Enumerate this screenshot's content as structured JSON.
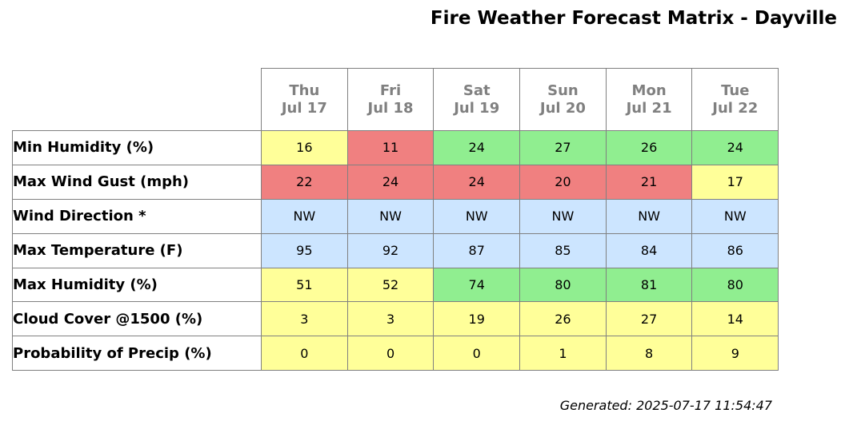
{
  "title": "Fire Weather Forecast Matrix - Dayville",
  "footer": "Generated: 2025-07-17 11:54:47",
  "colors": {
    "red": "#f08080",
    "yellow": "#ffff99",
    "green": "#90ee90",
    "blue": "#cce5ff"
  },
  "chart_data": {
    "type": "table",
    "title": "Fire Weather Forecast Matrix - Dayville",
    "columns": [
      {
        "weekday": "Thu",
        "date": "Jul 17"
      },
      {
        "weekday": "Fri",
        "date": "Jul 18"
      },
      {
        "weekday": "Sat",
        "date": "Jul 19"
      },
      {
        "weekday": "Sun",
        "date": "Jul 20"
      },
      {
        "weekday": "Mon",
        "date": "Jul 21"
      },
      {
        "weekday": "Tue",
        "date": "Jul 22"
      }
    ],
    "rows": [
      {
        "label": "Min Humidity (%)",
        "values": [
          "16",
          "11",
          "24",
          "27",
          "26",
          "24"
        ],
        "colors": [
          "yellow",
          "red",
          "green",
          "green",
          "green",
          "green"
        ]
      },
      {
        "label": "Max Wind Gust (mph)",
        "values": [
          "22",
          "24",
          "24",
          "20",
          "21",
          "17"
        ],
        "colors": [
          "red",
          "red",
          "red",
          "red",
          "red",
          "yellow"
        ]
      },
      {
        "label": "Wind Direction *",
        "values": [
          "NW",
          "NW",
          "NW",
          "NW",
          "NW",
          "NW"
        ],
        "colors": [
          "blue",
          "blue",
          "blue",
          "blue",
          "blue",
          "blue"
        ]
      },
      {
        "label": "Max Temperature (F)",
        "values": [
          "95",
          "92",
          "87",
          "85",
          "84",
          "86"
        ],
        "colors": [
          "blue",
          "blue",
          "blue",
          "blue",
          "blue",
          "blue"
        ]
      },
      {
        "label": "Max Humidity (%)",
        "values": [
          "51",
          "52",
          "74",
          "80",
          "81",
          "80"
        ],
        "colors": [
          "yellow",
          "yellow",
          "green",
          "green",
          "green",
          "green"
        ]
      },
      {
        "label": "Cloud Cover @1500 (%)",
        "values": [
          "3",
          "3",
          "19",
          "26",
          "27",
          "14"
        ],
        "colors": [
          "yellow",
          "yellow",
          "yellow",
          "yellow",
          "yellow",
          "yellow"
        ]
      },
      {
        "label": "Probability of Precip (%)",
        "values": [
          "0",
          "0",
          "0",
          "1",
          "8",
          "9"
        ],
        "colors": [
          "yellow",
          "yellow",
          "yellow",
          "yellow",
          "yellow",
          "yellow"
        ]
      }
    ]
  }
}
